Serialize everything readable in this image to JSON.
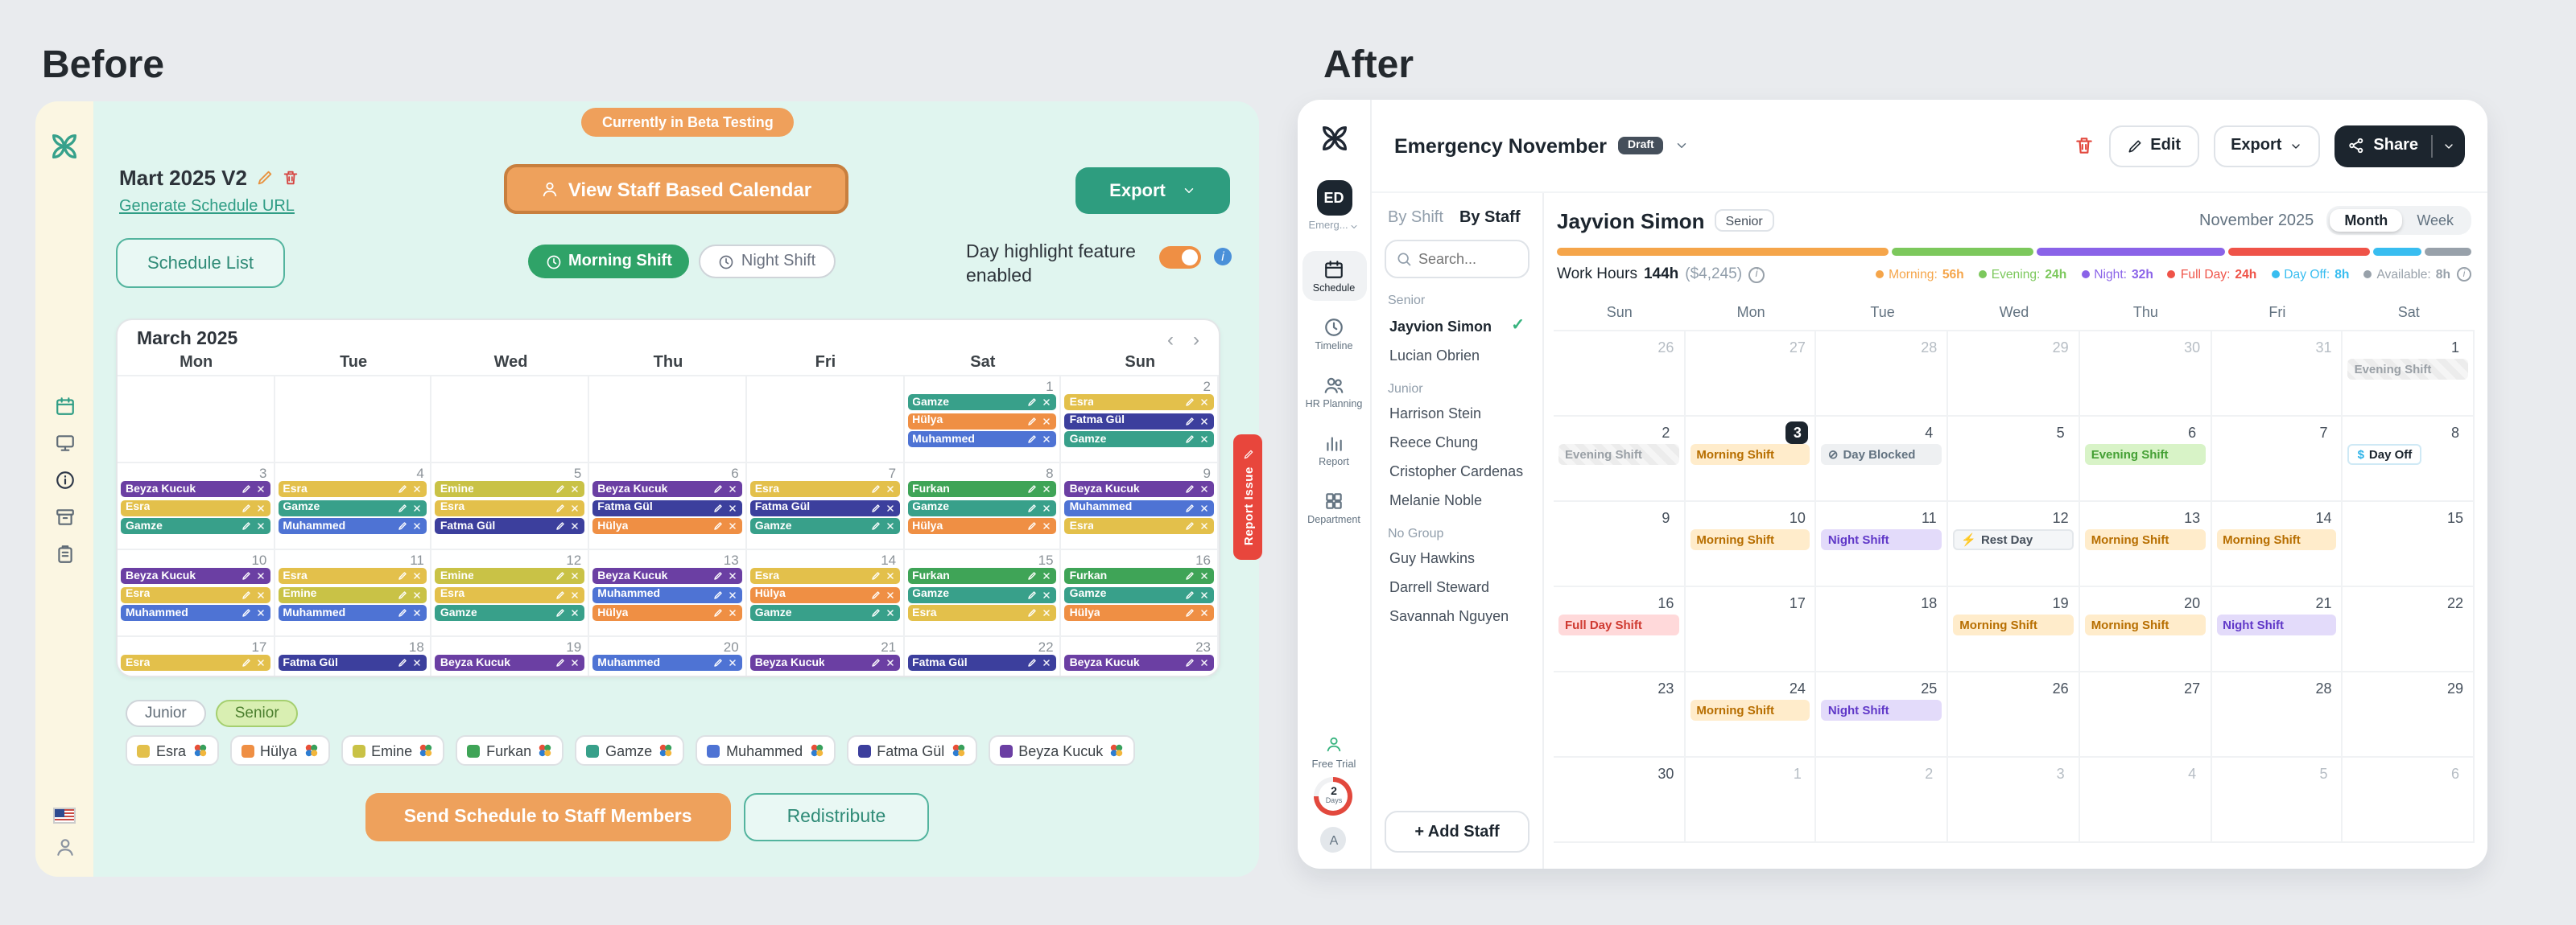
{
  "page": {
    "before_title": "Before",
    "after_title": "After"
  },
  "icons": {
    "chevron_left": "‹",
    "chevron_right": "›",
    "check_glyph": "✓",
    "dollar_glyph": "$",
    "lightning_glyph": "⚡",
    "blocked_glyph": "⊘",
    "info_glyph": "i"
  },
  "before": {
    "beta_badge": "Currently in Beta Testing",
    "schedule_name": "Mart 2025 V2",
    "generate_url_link": "Generate Schedule URL",
    "view_staff_button": "View Staff Based Calendar",
    "export_button": "Export",
    "schedule_list_button": "Schedule List",
    "morning_shift_toggle": "Morning Shift",
    "night_shift_toggle": "Night Shift",
    "day_highlight_label": "Day highlight feature enabled",
    "report_issue": "Report Issue",
    "send_button": "Send Schedule to Staff Members",
    "redistribute_button": "Redistribute",
    "group_pills": [
      {
        "label": "Junior",
        "active": false
      },
      {
        "label": "Senior",
        "active": true
      }
    ],
    "staff_colors": {
      "Esra": "#e3c04b",
      "Hülya": "#ef8f44",
      "Emine": "#c9c246",
      "Furkan": "#3fa457",
      "Gamze": "#38a08a",
      "Muhammed": "#4e73d4",
      "Fatma Gül": "#3c3f9d",
      "Beyza Kucuk": "#6b3fa3"
    },
    "legend_staff": [
      "Esra",
      "Hülya",
      "Emine",
      "Furkan",
      "Gamze",
      "Muhammed",
      "Fatma Gül",
      "Beyza Kucuk"
    ],
    "calendar": {
      "month_title": "March 2025",
      "weekdays": [
        "Mon",
        "Tue",
        "Wed",
        "Thu",
        "Fri",
        "Sat",
        "Sun"
      ],
      "weeks": [
        {
          "cells": [
            {},
            {},
            {},
            {},
            {},
            {
              "date": "1",
              "shifts": [
                "Gamze",
                "Hülya",
                "Muhammed"
              ]
            },
            {
              "date": "2",
              "shifts": [
                "Esra",
                "Fatma Gül",
                "Gamze"
              ]
            }
          ]
        },
        {
          "cells": [
            {
              "date": "3",
              "shifts": [
                "Beyza Kucuk",
                "Esra",
                "Gamze"
              ]
            },
            {
              "date": "4",
              "shifts": [
                "Esra",
                "Gamze",
                "Muhammed"
              ]
            },
            {
              "date": "5",
              "shifts": [
                "Emine",
                "Esra",
                "Fatma Gül"
              ]
            },
            {
              "date": "6",
              "shifts": [
                "Beyza Kucuk",
                "Fatma Gül",
                "Hülya"
              ]
            },
            {
              "date": "7",
              "shifts": [
                "Esra",
                "Fatma Gül",
                "Gamze"
              ]
            },
            {
              "date": "8",
              "shifts": [
                "Furkan",
                "Gamze",
                "Hülya"
              ]
            },
            {
              "date": "9",
              "shifts": [
                "Beyza Kucuk",
                "Muhammed",
                "Esra"
              ]
            }
          ]
        },
        {
          "cells": [
            {
              "date": "10",
              "shifts": [
                "Beyza Kucuk",
                "Esra",
                "Muhammed"
              ]
            },
            {
              "date": "11",
              "shifts": [
                "Esra",
                "Emine",
                "Muhammed"
              ]
            },
            {
              "date": "12",
              "shifts": [
                "Emine",
                "Esra",
                "Gamze"
              ]
            },
            {
              "date": "13",
              "shifts": [
                "Beyza Kucuk",
                "Muhammed",
                "Hülya"
              ]
            },
            {
              "date": "14",
              "shifts": [
                "Esra",
                "Hülya",
                "Gamze"
              ]
            },
            {
              "date": "15",
              "shifts": [
                "Furkan",
                "Gamze",
                "Esra"
              ]
            },
            {
              "date": "16",
              "shifts": [
                "Furkan",
                "Gamze",
                "Hülya"
              ]
            }
          ]
        },
        {
          "cells": [
            {
              "date": "17",
              "shifts": [
                "Esra"
              ]
            },
            {
              "date": "18",
              "shifts": [
                "Fatma Gül"
              ]
            },
            {
              "date": "19",
              "shifts": [
                "Beyza Kucuk"
              ]
            },
            {
              "date": "20",
              "shifts": [
                "Muhammed"
              ]
            },
            {
              "date": "21",
              "shifts": [
                "Beyza Kucuk"
              ]
            },
            {
              "date": "22",
              "shifts": [
                "Fatma Gül"
              ]
            },
            {
              "date": "23",
              "shifts": [
                "Beyza Kucuk"
              ]
            }
          ]
        }
      ]
    }
  },
  "after": {
    "sidebar": {
      "workspace_initials": "ED",
      "workspace_label": "Emerg...",
      "nav": [
        {
          "label": "Schedule",
          "icon": "calendar",
          "active": true
        },
        {
          "label": "Timeline",
          "icon": "clock",
          "active": false
        },
        {
          "label": "HR Planning",
          "icon": "users",
          "active": false
        },
        {
          "label": "Report",
          "icon": "chart",
          "active": false
        },
        {
          "label": "Department",
          "icon": "grid",
          "active": false
        }
      ],
      "free_trial_label": "Free Trial",
      "trial_days_value": "2",
      "trial_days_unit": "Days",
      "user_initial": "A"
    },
    "header": {
      "title": "Emergency November",
      "status_badge": "Draft",
      "edit_button": "Edit",
      "export_button": "Export",
      "share_button": "Share"
    },
    "staff_panel": {
      "tabs": [
        "By Shift",
        "By Staff"
      ],
      "search_placeholder": "Search...",
      "groups": [
        {
          "name": "Senior",
          "members": [
            {
              "name": "Jayvion Simon",
              "selected": true
            },
            {
              "name": "Lucian Obrien"
            }
          ]
        },
        {
          "name": "Junior",
          "members": [
            {
              "name": "Harrison Stein"
            },
            {
              "name": "Reece Chung"
            },
            {
              "name": "Cristopher Cardenas"
            },
            {
              "name": "Melanie Noble"
            }
          ]
        },
        {
          "name": "No Group",
          "members": [
            {
              "name": "Guy Hawkins"
            },
            {
              "name": "Darrell Steward"
            },
            {
              "name": "Savannah Nguyen"
            }
          ]
        }
      ],
      "add_staff_button": "+ Add Staff"
    },
    "detail": {
      "staff_name": "Jayvion Simon",
      "staff_badge": "Senior",
      "month_label": "November 2025",
      "view_toggle": [
        "Month",
        "Week"
      ],
      "work_hours_label": "Work Hours",
      "work_hours_value": "144h",
      "work_hours_amount": "($4,245)",
      "hour_legend": [
        {
          "label": "Morning",
          "value": "56h",
          "hours": 56,
          "color": "#f5a54a"
        },
        {
          "label": "Evening",
          "value": "24h",
          "hours": 24,
          "color": "#7cc85c"
        },
        {
          "label": "Night",
          "value": "32h",
          "hours": 32,
          "color": "#8a63e8"
        },
        {
          "label": "Full Day",
          "value": "24h",
          "hours": 24,
          "color": "#ef5348"
        },
        {
          "label": "Day Off",
          "value": "8h",
          "hours": 8,
          "color": "#38bdf0"
        },
        {
          "label": "Available",
          "value": "8h",
          "hours": 8,
          "color": "#98a1aa"
        }
      ]
    },
    "calendar": {
      "weekdays": [
        "Sun",
        "Mon",
        "Tue",
        "Wed",
        "Thu",
        "Fri",
        "Sat"
      ],
      "weeks": [
        {
          "cells": [
            {
              "date": "26",
              "muted": true
            },
            {
              "date": "27",
              "muted": true
            },
            {
              "date": "28",
              "muted": true
            },
            {
              "date": "29",
              "muted": true
            },
            {
              "date": "30",
              "muted": true
            },
            {
              "date": "31",
              "muted": true
            },
            {
              "date": "1",
              "chips": [
                {
                  "label": "Evening Shift",
                  "type": "muted"
                }
              ]
            }
          ]
        },
        {
          "cells": [
            {
              "date": "2",
              "chips": [
                {
                  "label": "Evening Shift",
                  "type": "muted"
                }
              ]
            },
            {
              "date": "3",
              "today": true,
              "chips": [
                {
                  "label": "Morning Shift",
                  "type": "morning"
                }
              ]
            },
            {
              "date": "4",
              "chips": [
                {
                  "label": "Day Blocked",
                  "type": "blocked",
                  "icon": "blocked_glyph",
                  "icon_name": "blocked-icon"
                }
              ]
            },
            {
              "date": "5"
            },
            {
              "date": "6",
              "chips": [
                {
                  "label": "Evening Shift",
                  "type": "evening"
                }
              ]
            },
            {
              "date": "7"
            },
            {
              "date": "8",
              "chips": [
                {
                  "label": "Day Off",
                  "type": "dayoff",
                  "icon": "dollar_glyph",
                  "icon_name": "dollar-icon"
                }
              ]
            }
          ]
        },
        {
          "cells": [
            {
              "date": "9"
            },
            {
              "date": "10",
              "chips": [
                {
                  "label": "Morning Shift",
                  "type": "morning"
                }
              ]
            },
            {
              "date": "11",
              "chips": [
                {
                  "label": "Night Shift",
                  "type": "night"
                }
              ]
            },
            {
              "date": "12",
              "chips": [
                {
                  "label": "Rest Day",
                  "type": "rest",
                  "icon": "lightning_glyph",
                  "icon_name": "rest-icon"
                }
              ]
            },
            {
              "date": "13",
              "chips": [
                {
                  "label": "Morning Shift",
                  "type": "morning"
                }
              ]
            },
            {
              "date": "14",
              "chips": [
                {
                  "label": "Morning Shift",
                  "type": "morning"
                }
              ]
            },
            {
              "date": "15"
            }
          ]
        },
        {
          "cells": [
            {
              "date": "16",
              "chips": [
                {
                  "label": "Full Day Shift",
                  "type": "fullday"
                }
              ]
            },
            {
              "date": "17"
            },
            {
              "date": "18"
            },
            {
              "date": "19",
              "chips": [
                {
                  "label": "Morning Shift",
                  "type": "morning"
                }
              ]
            },
            {
              "date": "20",
              "chips": [
                {
                  "label": "Morning Shift",
                  "type": "morning"
                }
              ]
            },
            {
              "date": "21",
              "chips": [
                {
                  "label": "Night Shift",
                  "type": "night"
                }
              ]
            },
            {
              "date": "22"
            }
          ]
        },
        {
          "cells": [
            {
              "date": "23"
            },
            {
              "date": "24",
              "chips": [
                {
                  "label": "Morning Shift",
                  "type": "morning"
                }
              ]
            },
            {
              "date": "25",
              "chips": [
                {
                  "label": "Night Shift",
                  "type": "night"
                }
              ]
            },
            {
              "date": "26"
            },
            {
              "date": "27"
            },
            {
              "date": "28"
            },
            {
              "date": "29"
            }
          ]
        },
        {
          "cells": [
            {
              "date": "30"
            },
            {
              "date": "1",
              "muted": true
            },
            {
              "date": "2",
              "muted": true
            },
            {
              "date": "3",
              "muted": true
            },
            {
              "date": "4",
              "muted": true
            },
            {
              "date": "5",
              "muted": true
            },
            {
              "date": "6",
              "muted": true
            }
          ]
        }
      ]
    }
  }
}
